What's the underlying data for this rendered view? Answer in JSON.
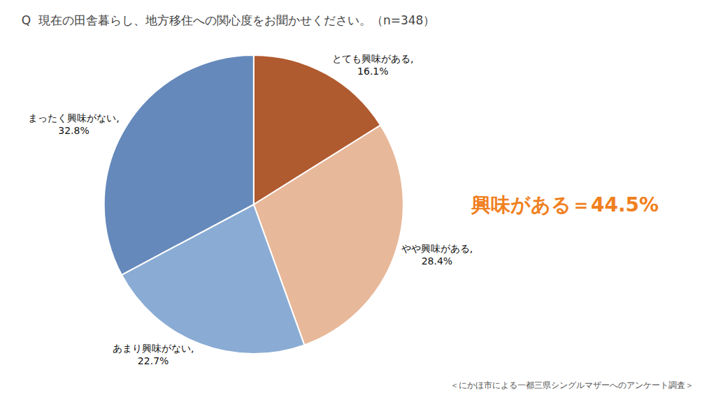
{
  "chart_data": {
    "type": "pie",
    "title": "Q  現在の田舎暮らし、地方移住への関心度をお聞かせください。（n=348）",
    "categories": [
      "とても興味がある,",
      "やや興味がある,",
      "あまり興味がない,",
      "まったく興味がない,"
    ],
    "values": [
      16.1,
      28.4,
      22.7,
      32.8
    ],
    "value_labels": [
      "16.1%",
      "28.4%",
      "22.7%",
      "32.8%"
    ],
    "colors": [
      "#b05a2f",
      "#e8b89a",
      "#8aacd4",
      "#6589bb"
    ],
    "data_labels": true,
    "annotations": [
      {
        "text": "興味がある＝44.5%",
        "color": "#f08020"
      },
      {
        "text": "＜にかほ市による一都三県シングルマザーへのアンケート調査＞"
      }
    ]
  }
}
